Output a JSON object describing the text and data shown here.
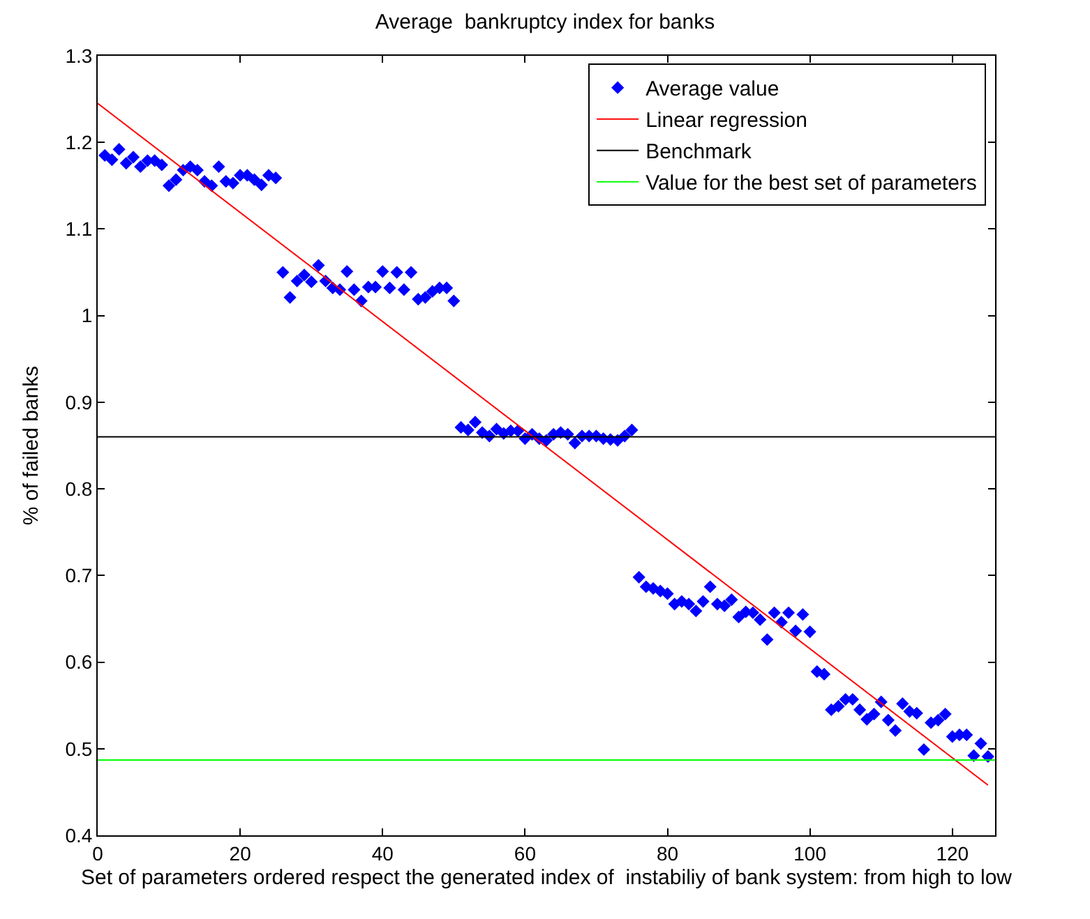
{
  "chart_data": {
    "type": "scatter",
    "title": "Average  bankruptcy index for banks",
    "xlabel": "Set of parameters ordered respect the generated index of  instabiliy of bank system: from high to low",
    "ylabel": "% of failed banks",
    "xlim": [
      0,
      126
    ],
    "xticks": [
      0,
      20,
      40,
      60,
      80,
      100,
      120
    ],
    "ylim": [
      0.4,
      1.3
    ],
    "yticks": [
      0.4,
      0.5,
      0.6,
      0.7,
      0.8,
      0.9,
      1,
      1.1,
      1.2,
      1.3
    ],
    "legend": "top right",
    "series": [
      {
        "name": "Average value",
        "marker": "diamond",
        "color": "#0000ff",
        "x": [
          1,
          2,
          3,
          4,
          5,
          6,
          7,
          8,
          9,
          10,
          11,
          12,
          13,
          14,
          15,
          16,
          17,
          18,
          19,
          20,
          21,
          22,
          23,
          24,
          25,
          26,
          27,
          28,
          29,
          30,
          31,
          32,
          33,
          34,
          35,
          36,
          37,
          38,
          39,
          40,
          41,
          42,
          43,
          44,
          45,
          46,
          47,
          48,
          49,
          50,
          51,
          52,
          53,
          54,
          55,
          56,
          57,
          58,
          59,
          60,
          61,
          62,
          63,
          64,
          65,
          66,
          67,
          68,
          69,
          70,
          71,
          72,
          73,
          74,
          75,
          76,
          77,
          78,
          79,
          80,
          81,
          82,
          83,
          84,
          85,
          86,
          87,
          88,
          89,
          90,
          91,
          92,
          93,
          94,
          95,
          96,
          97,
          98,
          99,
          100,
          101,
          102,
          103,
          104,
          105,
          106,
          107,
          108,
          109,
          110,
          111,
          112,
          113,
          114,
          115,
          116,
          117,
          118,
          119,
          120,
          121,
          122,
          123,
          124,
          125
        ],
        "values": [
          1.185,
          1.18,
          1.192,
          1.176,
          1.183,
          1.172,
          1.179,
          1.179,
          1.174,
          1.15,
          1.157,
          1.168,
          1.172,
          1.168,
          1.155,
          1.15,
          1.172,
          1.155,
          1.153,
          1.162,
          1.162,
          1.157,
          1.151,
          1.162,
          1.159,
          1.05,
          1.021,
          1.04,
          1.047,
          1.039,
          1.058,
          1.04,
          1.032,
          1.03,
          1.051,
          1.03,
          1.017,
          1.033,
          1.033,
          1.051,
          1.032,
          1.05,
          1.03,
          1.05,
          1.019,
          1.021,
          1.028,
          1.032,
          1.032,
          1.017,
          0.871,
          0.868,
          0.877,
          0.865,
          0.861,
          0.869,
          0.864,
          0.867,
          0.867,
          0.858,
          0.863,
          0.858,
          0.856,
          0.863,
          0.865,
          0.863,
          0.853,
          0.861,
          0.861,
          0.861,
          0.858,
          0.857,
          0.856,
          0.861,
          0.868,
          0.698,
          0.687,
          0.685,
          0.682,
          0.679,
          0.667,
          0.67,
          0.667,
          0.659,
          0.67,
          0.687,
          0.667,
          0.665,
          0.672,
          0.652,
          0.658,
          0.657,
          0.649,
          0.626,
          0.657,
          0.646,
          0.657,
          0.636,
          0.655,
          0.635,
          0.589,
          0.586,
          0.545,
          0.549,
          0.557,
          0.557,
          0.545,
          0.534,
          0.54,
          0.554,
          0.533,
          0.521,
          0.552,
          0.543,
          0.541,
          0.499,
          0.53,
          0.533,
          0.54,
          0.514,
          0.516,
          0.516,
          0.492,
          0.506,
          0.491
        ]
      },
      {
        "name": "Linear regression",
        "type": "line",
        "marker": "none",
        "color": "#ff0000",
        "x": [
          0,
          125
        ],
        "values": [
          1.245,
          0.458
        ]
      }
    ],
    "ref_lines": [
      {
        "axis": "y",
        "value": 0.86,
        "label": "Benchmark",
        "color": "#000000"
      },
      {
        "axis": "y",
        "value": 0.487,
        "label": "Value for the best set of parameters",
        "color": "#00ff00"
      }
    ]
  }
}
